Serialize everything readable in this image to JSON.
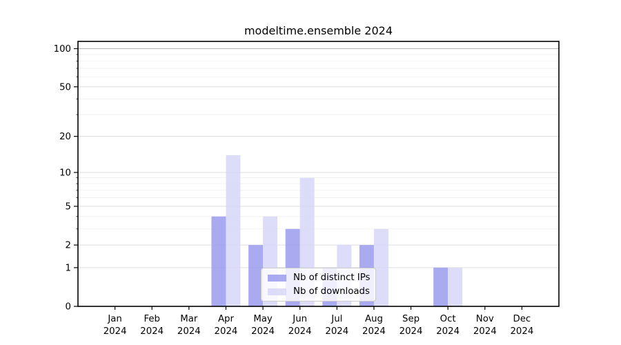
{
  "chart_data": {
    "type": "bar",
    "title": "modeltime.ensemble 2024",
    "categories": [
      "Jan",
      "Feb",
      "Mar",
      "Apr",
      "May",
      "Jun",
      "Jul",
      "Aug",
      "Sep",
      "Oct",
      "Nov",
      "Dec"
    ],
    "x_year_label": "2024",
    "series": [
      {
        "name": "Nb of distinct IPs",
        "color": "#9b9bef",
        "values": [
          0,
          0,
          0,
          4,
          2,
          3,
          1,
          2,
          0,
          1,
          0,
          0
        ]
      },
      {
        "name": "Nb of downloads",
        "color": "#d7d7f8",
        "values": [
          0,
          0,
          0,
          14,
          4,
          9,
          2,
          3,
          0,
          1,
          0,
          0
        ]
      }
    ],
    "yscale": "log1p",
    "ylim": [
      0,
      114
    ],
    "yticks": [
      0,
      1,
      2,
      5,
      10,
      20,
      50,
      100
    ],
    "minor_yticks": [
      3,
      4,
      6,
      7,
      8,
      9,
      30,
      40,
      60,
      70,
      80,
      90
    ],
    "grid": "on",
    "legend_position": "inside-lower-center",
    "colors": {
      "major_grid": "#dedede",
      "top_grid": "#b5b5b5",
      "minor_grid": "#f2f2f2",
      "spine": "#000000"
    }
  }
}
